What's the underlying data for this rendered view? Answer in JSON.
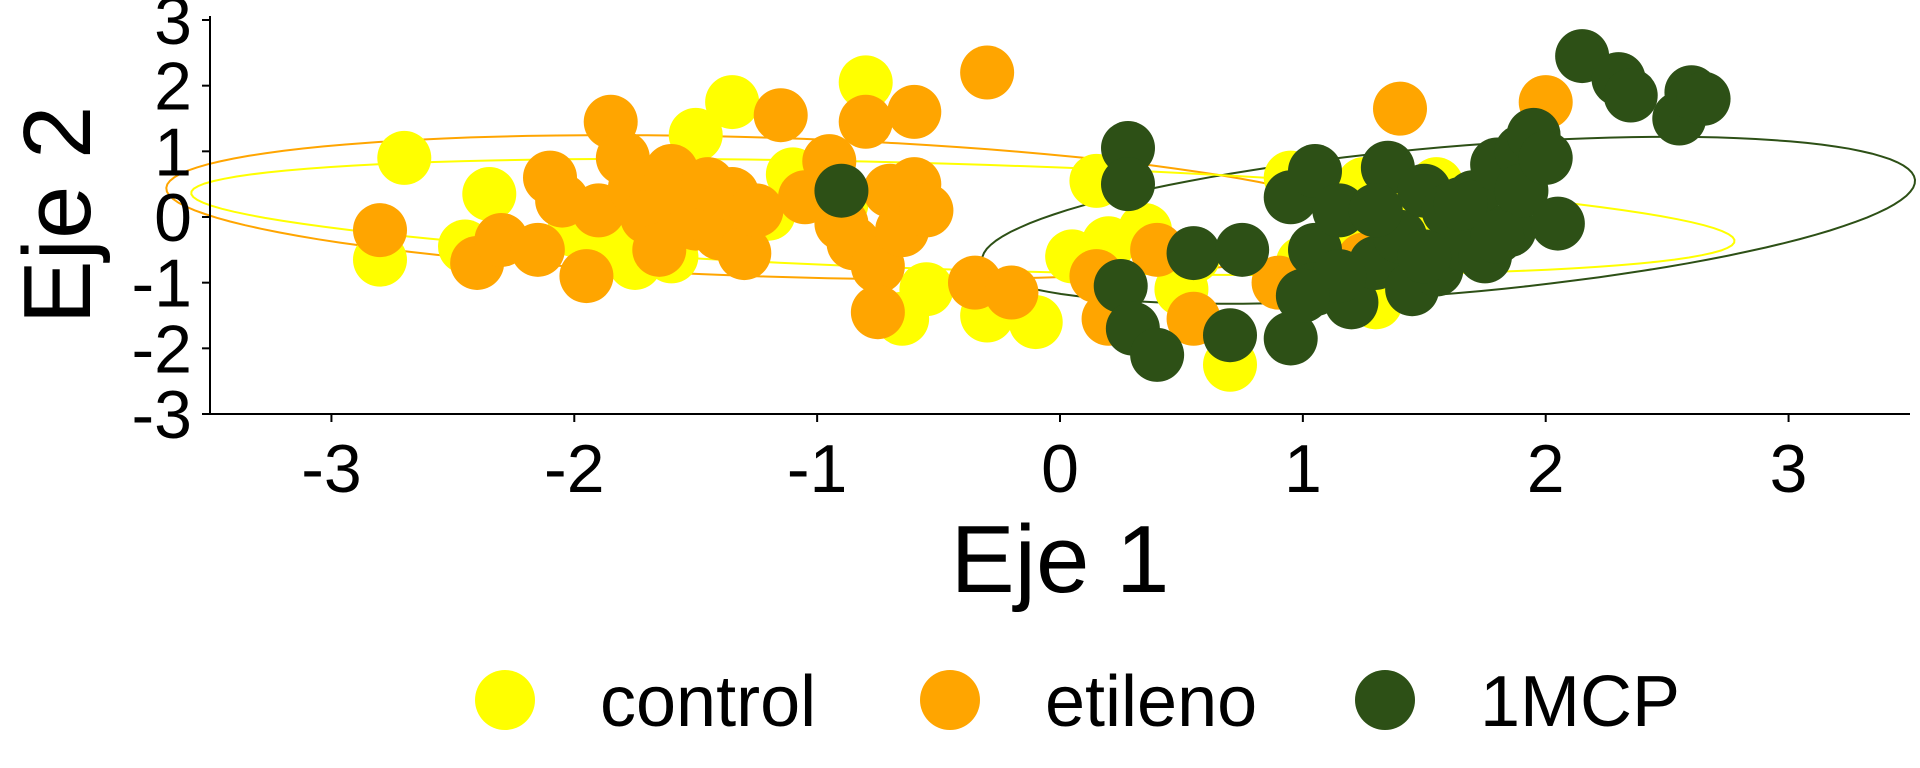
{
  "chart_data": {
    "type": "scatter",
    "title": "",
    "xlabel": "Eje 1",
    "ylabel": "Eje 2",
    "xlim": [
      -3.5,
      3.5
    ],
    "ylim": [
      -3,
      3
    ],
    "x_ticks": [
      "-3",
      "-2",
      "-1",
      "0",
      "1",
      "2",
      "3"
    ],
    "y_ticks": [
      "-3",
      "-2",
      "-1",
      "0",
      "1",
      "2",
      "3"
    ],
    "grid": false,
    "legend_position": "bottom",
    "series": [
      {
        "name": "control",
        "color": "#FFFF00",
        "points": [
          [
            -2.7,
            0.9
          ],
          [
            -2.8,
            -0.65
          ],
          [
            -2.35,
            0.35
          ],
          [
            -1.35,
            1.75
          ],
          [
            -1.5,
            1.25
          ],
          [
            -0.8,
            2.05
          ],
          [
            -1.1,
            0.65
          ],
          [
            -1.6,
            -0.6
          ],
          [
            -1.75,
            -0.7
          ],
          [
            -2.0,
            -0.2
          ],
          [
            -0.55,
            -1.1
          ],
          [
            -0.65,
            -1.55
          ],
          [
            -0.3,
            -1.5
          ],
          [
            -0.1,
            -1.6
          ],
          [
            0.05,
            -0.6
          ],
          [
            0.2,
            -0.4
          ],
          [
            0.35,
            -0.2
          ],
          [
            0.55,
            -0.6
          ],
          [
            0.7,
            -2.25
          ],
          [
            0.5,
            -1.1
          ],
          [
            1.0,
            -0.7
          ],
          [
            1.25,
            0.5
          ],
          [
            1.45,
            0.1
          ],
          [
            1.55,
            0.5
          ],
          [
            1.3,
            -1.3
          ],
          [
            0.95,
            0.6
          ],
          [
            1.2,
            -0.5
          ],
          [
            0.15,
            0.55
          ],
          [
            -1.2,
            0.05
          ],
          [
            -0.9,
            0.2
          ],
          [
            -1.85,
            -0.3
          ],
          [
            -2.45,
            -0.45
          ]
        ]
      },
      {
        "name": "etileno",
        "color": "#FFA500",
        "points": [
          [
            -2.8,
            -0.2
          ],
          [
            -2.4,
            -0.7
          ],
          [
            -2.3,
            -0.35
          ],
          [
            -2.15,
            -0.5
          ],
          [
            -2.1,
            0.6
          ],
          [
            -2.05,
            0.25
          ],
          [
            -1.95,
            -0.9
          ],
          [
            -1.9,
            0.1
          ],
          [
            -1.85,
            1.45
          ],
          [
            -1.8,
            0.9
          ],
          [
            -1.75,
            0.45
          ],
          [
            -1.7,
            0.0
          ],
          [
            -1.65,
            -0.5
          ],
          [
            -1.6,
            0.7
          ],
          [
            -1.55,
            0.2
          ],
          [
            -1.5,
            -0.1
          ],
          [
            -1.45,
            0.5
          ],
          [
            -1.4,
            -0.25
          ],
          [
            -1.35,
            0.35
          ],
          [
            -1.3,
            -0.55
          ],
          [
            -1.25,
            0.1
          ],
          [
            -1.15,
            1.55
          ],
          [
            -1.05,
            0.3
          ],
          [
            -0.95,
            0.85
          ],
          [
            -0.9,
            -0.1
          ],
          [
            -0.85,
            -0.4
          ],
          [
            -0.8,
            1.45
          ],
          [
            -0.75,
            -0.75
          ],
          [
            -0.75,
            -1.45
          ],
          [
            -0.7,
            0.4
          ],
          [
            -0.65,
            -0.2
          ],
          [
            -0.6,
            1.6
          ],
          [
            -0.6,
            0.5
          ],
          [
            -0.55,
            0.1
          ],
          [
            -0.35,
            -1.0
          ],
          [
            -0.3,
            2.2
          ],
          [
            -0.2,
            -1.15
          ],
          [
            0.15,
            -0.9
          ],
          [
            0.2,
            -1.55
          ],
          [
            0.4,
            -0.5
          ],
          [
            0.55,
            -1.55
          ],
          [
            0.9,
            -1.0
          ],
          [
            1.25,
            -0.65
          ],
          [
            1.4,
            1.65
          ],
          [
            2.0,
            1.75
          ]
        ]
      },
      {
        "name": "1MCP",
        "color": "#2D5016",
        "points": [
          [
            -0.9,
            0.4
          ],
          [
            0.28,
            1.05
          ],
          [
            0.28,
            0.5
          ],
          [
            0.25,
            -1.05
          ],
          [
            0.3,
            -1.7
          ],
          [
            0.4,
            -2.1
          ],
          [
            0.55,
            -0.55
          ],
          [
            0.75,
            -0.5
          ],
          [
            0.7,
            -1.8
          ],
          [
            0.95,
            -1.85
          ],
          [
            0.95,
            0.3
          ],
          [
            1.05,
            0.7
          ],
          [
            1.05,
            -0.5
          ],
          [
            1.05,
            -1.1
          ],
          [
            1.15,
            0.1
          ],
          [
            1.2,
            -1.3
          ],
          [
            1.3,
            -0.7
          ],
          [
            1.35,
            0.75
          ],
          [
            1.4,
            -0.3
          ],
          [
            1.45,
            -1.1
          ],
          [
            1.5,
            0.4
          ],
          [
            1.55,
            -0.8
          ],
          [
            1.6,
            0.1
          ],
          [
            1.65,
            -0.4
          ],
          [
            1.7,
            0.3
          ],
          [
            1.75,
            -0.6
          ],
          [
            1.8,
            0.8
          ],
          [
            1.85,
            -0.2
          ],
          [
            1.9,
            1.0
          ],
          [
            1.9,
            0.4
          ],
          [
            1.95,
            1.25
          ],
          [
            2.0,
            0.9
          ],
          [
            2.05,
            -0.1
          ],
          [
            1.8,
            -0.3
          ],
          [
            1.65,
            0.2
          ],
          [
            2.15,
            2.45
          ],
          [
            2.3,
            2.1
          ],
          [
            2.35,
            1.85
          ],
          [
            2.55,
            1.5
          ],
          [
            2.6,
            1.9
          ],
          [
            2.65,
            1.8
          ],
          [
            1.5,
            -0.6
          ],
          [
            1.3,
            0.1
          ],
          [
            1.15,
            -0.9
          ],
          [
            1.0,
            -1.2
          ]
        ]
      }
    ],
    "ellipses": [
      {
        "series": "control",
        "color": "#FFFF00",
        "cx": -0.4,
        "cy": 0.0,
        "rx": 3.2,
        "ry": 0.8,
        "angle_deg": -7
      },
      {
        "series": "etileno",
        "color": "#FFA500",
        "cx": -1.2,
        "cy": 0.15,
        "rx": 2.5,
        "ry": 1.05,
        "angle_deg": -8
      },
      {
        "series": "1MCP",
        "color": "#2D5016",
        "cx": 1.6,
        "cy": -0.05,
        "rx": 2.05,
        "ry": 1.05,
        "angle_deg": 24
      }
    ]
  }
}
